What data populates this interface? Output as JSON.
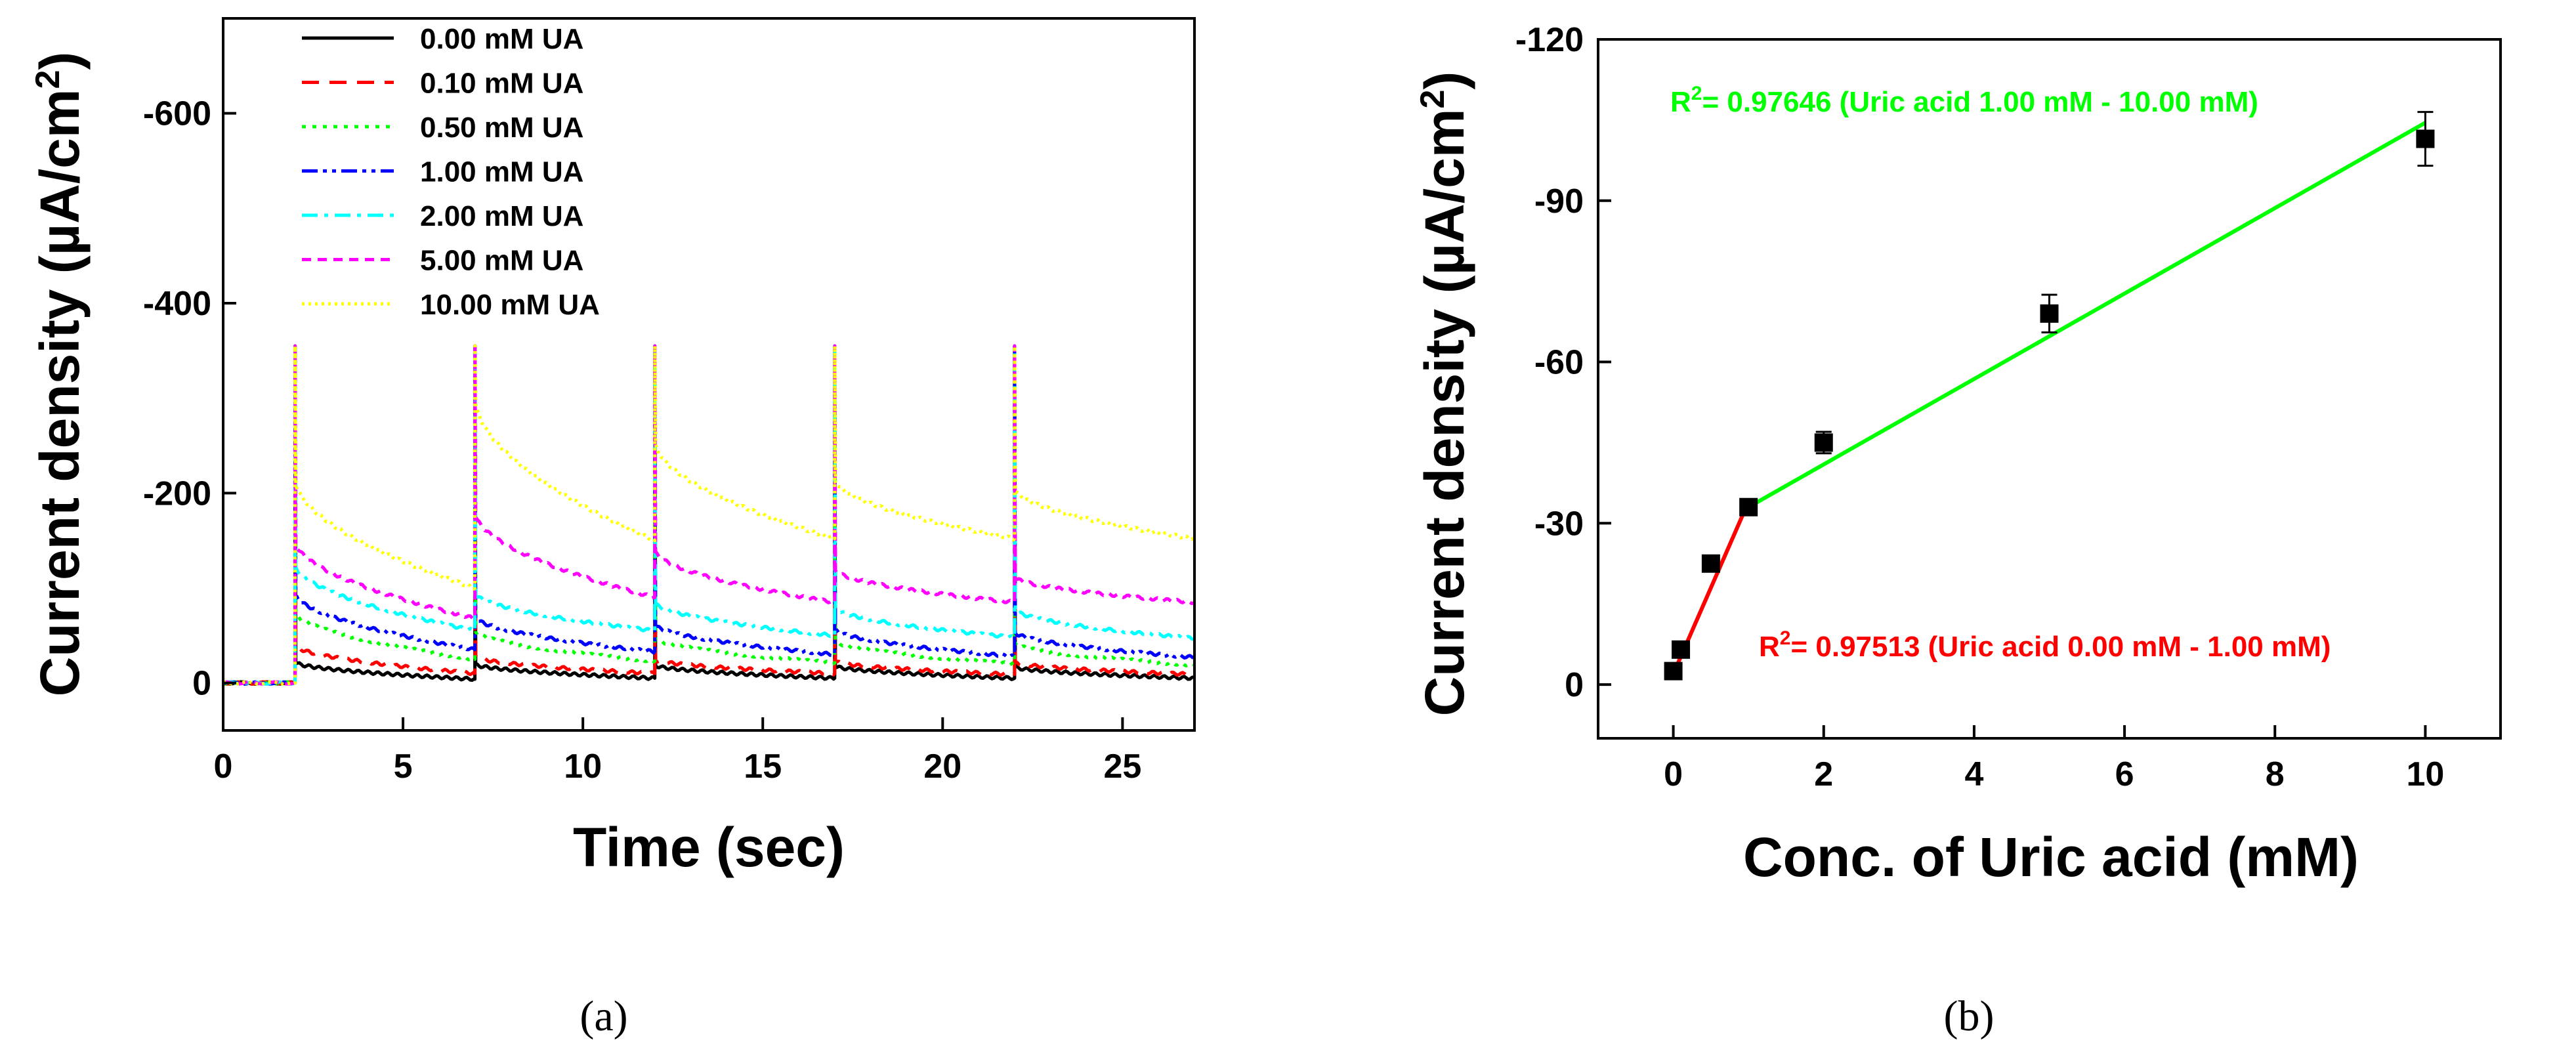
{
  "chart_data": [
    {
      "type": "line",
      "panel_label": "(a)",
      "xlabel": "Time (sec)",
      "ylabel": {
        "main": "Current density (µA/cm",
        "sup": "2",
        "end": ")"
      },
      "xlim": [
        0,
        27
      ],
      "ylim": [
        50,
        -700
      ],
      "xticks": [
        0,
        5,
        10,
        15,
        20,
        25
      ],
      "yticks": [
        0,
        -200,
        -400,
        -600
      ],
      "ytick_labels": [
        "0",
        "-200",
        "-400",
        "-600"
      ],
      "legend_position": "top-center",
      "pulse_times": [
        2,
        7,
        12,
        17,
        22
      ],
      "spike_value": -355,
      "baseline": 0,
      "series": [
        {
          "name": "0.00 mM UA",
          "color": "#000000",
          "dash": "solid",
          "pulse_start": [
            -22,
            -20,
            -19,
            -18,
            -17
          ],
          "pulse_end": [
            -4,
            -5,
            -5,
            -5,
            -5
          ]
        },
        {
          "name": "0.10 mM UA",
          "color": "#ff0000",
          "dash": "dashed",
          "pulse_start": [
            -40,
            -28,
            -25,
            -23,
            -22
          ],
          "pulse_end": [
            -10,
            -10,
            -10,
            -9,
            -9
          ]
        },
        {
          "name": "0.50 mM UA",
          "color": "#00ff00",
          "dash": "dotted",
          "pulse_start": [
            -75,
            -55,
            -48,
            -45,
            -42
          ],
          "pulse_end": [
            -25,
            -23,
            -21,
            -20,
            -19
          ]
        },
        {
          "name": "1.00 mM UA",
          "color": "#0000ff",
          "dash": "dashdotdot",
          "pulse_start": [
            -95,
            -70,
            -62,
            -57,
            -54
          ],
          "pulse_end": [
            -35,
            -33,
            -30,
            -28,
            -27
          ]
        },
        {
          "name": "2.00 mM UA",
          "color": "#00ffff",
          "dash": "dashdot",
          "pulse_start": [
            -125,
            -95,
            -85,
            -80,
            -78
          ],
          "pulse_end": [
            -55,
            -55,
            -50,
            -48,
            -47
          ]
        },
        {
          "name": "5.00 mM UA",
          "color": "#ff00ff",
          "dash": "shortdash",
          "pulse_start": [
            -150,
            -180,
            -140,
            -120,
            -112
          ],
          "pulse_end": [
            -68,
            -90,
            -85,
            -85,
            -85
          ]
        },
        {
          "name": "10.00 mM UA",
          "color": "#ffff00",
          "dash": "shortdot",
          "pulse_start": [
            -215,
            -300,
            -255,
            -215,
            -205
          ],
          "pulse_end": [
            -100,
            -150,
            -152,
            -152,
            -152
          ]
        }
      ]
    },
    {
      "type": "scatter",
      "panel_label": "(b)",
      "xlabel": "Conc. of Uric acid (mM)",
      "ylabel": {
        "main": "Current density (µA/cm",
        "sup": "2",
        "end": ")"
      },
      "xlim": [
        -1,
        11
      ],
      "ylim": [
        10,
        -120
      ],
      "xticks": [
        0,
        2,
        4,
        6,
        8,
        10
      ],
      "yticks": [
        0,
        -30,
        -60,
        -90,
        -120
      ],
      "ytick_labels": [
        "0",
        "-30",
        "-60",
        "-90",
        "-120"
      ],
      "points": [
        {
          "x": 0.0,
          "y": -2.5,
          "err": 1.0
        },
        {
          "x": 0.1,
          "y": -6.5,
          "err": 1.0
        },
        {
          "x": 0.5,
          "y": -22.5,
          "err": 1.0
        },
        {
          "x": 1.0,
          "y": -33.0,
          "err": 1.0
        },
        {
          "x": 2.0,
          "y": -45.0,
          "err": 2.0
        },
        {
          "x": 5.0,
          "y": -69.0,
          "err": 3.5
        },
        {
          "x": 10.0,
          "y": -101.5,
          "err": 5.0
        }
      ],
      "fits": [
        {
          "name": "fit-low",
          "color": "#ff0000",
          "x": [
            0.0,
            1.0
          ],
          "y": [
            -2.0,
            -34.0
          ]
        },
        {
          "name": "fit-high",
          "color": "#00ff00",
          "x": [
            1.0,
            10.0
          ],
          "y": [
            -33.0,
            -104.5
          ]
        }
      ],
      "annotations": [
        {
          "id": "high",
          "color": "#00ff00",
          "prefix": "R",
          "sup": "2",
          "text": "= 0.97646 (Uric acid 1.00 mM - 10.00 mM)"
        },
        {
          "id": "low",
          "color": "#ff0000",
          "prefix": "R",
          "sup": "2",
          "text": "= 0.97513 (Uric acid 0.00 mM - 1.00 mM)"
        }
      ]
    }
  ]
}
